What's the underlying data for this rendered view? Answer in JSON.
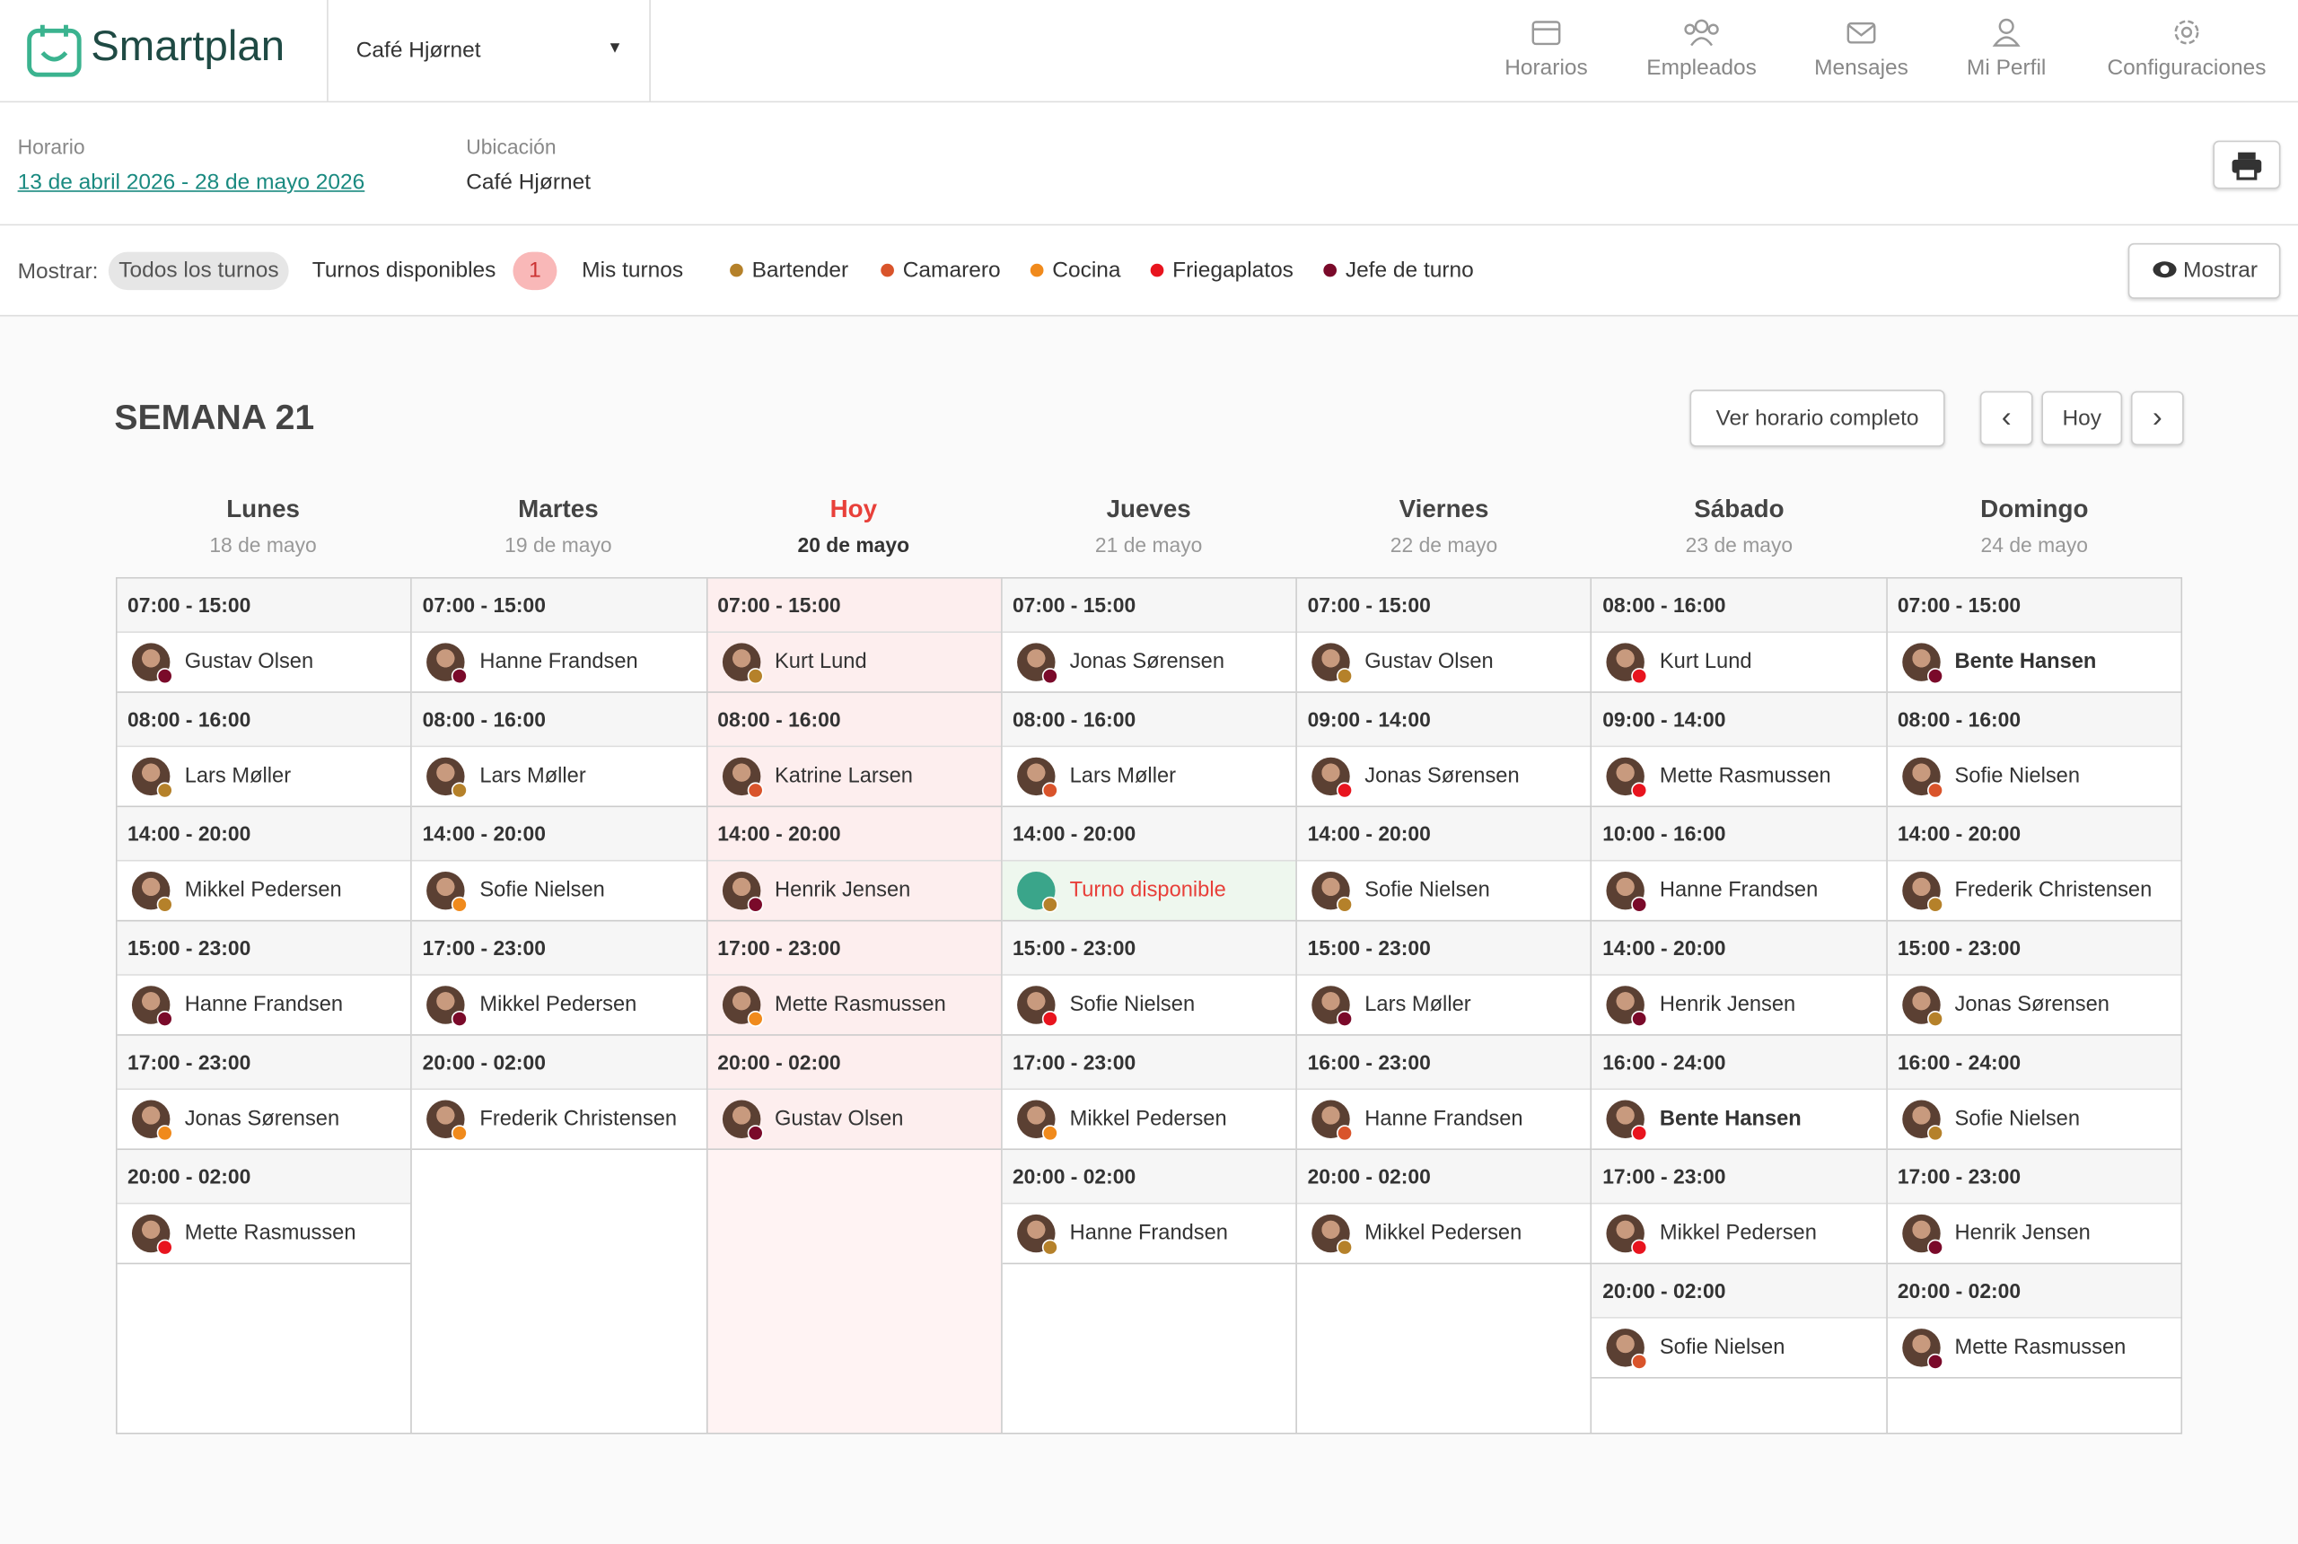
{
  "header": {
    "brand": "Smartplan",
    "location_select": "Café Hjørnet",
    "nav": [
      "Horarios",
      "Empleados",
      "Mensajes",
      "Mi Perfil",
      "Configuraciones"
    ]
  },
  "info": {
    "schedule_label": "Horario",
    "schedule_range": "13 de abril 2026 - 28 de mayo 2026",
    "location_label": "Ubicación",
    "location": "Café Hjørnet"
  },
  "filters": {
    "label": "Mostrar:",
    "options": [
      "Todos los turnos",
      "Turnos disponibles",
      "Mis turnos"
    ],
    "available_count": 1,
    "roles": [
      {
        "name": "Bartender",
        "color": "#b5812a"
      },
      {
        "name": "Camarero",
        "color": "#d9542b"
      },
      {
        "name": "Cocina",
        "color": "#f08a1c"
      },
      {
        "name": "Friegaplatos",
        "color": "#e8141e"
      },
      {
        "name": "Jefe de turno",
        "color": "#7a0a2a"
      }
    ],
    "show_button": "Mostrar"
  },
  "week": {
    "title": "SEMANA 21",
    "full_schedule": "Ver horario completo",
    "today_button": "Hoy",
    "days": [
      {
        "name": "Lunes",
        "date": "18 de mayo",
        "today": false,
        "shifts": [
          {
            "time": "07:00 - 15:00",
            "employee": "Gustav Olsen",
            "color": "#7a0a2a"
          },
          {
            "time": "08:00 - 16:00",
            "employee": "Lars Møller",
            "color": "#b5812a"
          },
          {
            "time": "14:00 - 20:00",
            "employee": "Mikkel Pedersen",
            "color": "#b5812a"
          },
          {
            "time": "15:00 - 23:00",
            "employee": "Hanne Frandsen",
            "color": "#7a0a2a"
          },
          {
            "time": "17:00 - 23:00",
            "employee": "Jonas Sørensen",
            "color": "#f08a1c"
          },
          {
            "time": "20:00 - 02:00",
            "employee": "Mette Rasmussen",
            "color": "#e8141e"
          }
        ]
      },
      {
        "name": "Martes",
        "date": "19 de mayo",
        "today": false,
        "shifts": [
          {
            "time": "07:00 - 15:00",
            "employee": "Hanne Frandsen",
            "color": "#7a0a2a"
          },
          {
            "time": "08:00 - 16:00",
            "employee": "Lars Møller",
            "color": "#b5812a"
          },
          {
            "time": "14:00 - 20:00",
            "employee": "Sofie Nielsen",
            "color": "#f08a1c"
          },
          {
            "time": "17:00 - 23:00",
            "employee": "Mikkel Pedersen",
            "color": "#7a0a2a"
          },
          {
            "time": "20:00 - 02:00",
            "employee": "Frederik Christensen",
            "color": "#f08a1c"
          }
        ]
      },
      {
        "name": "Hoy",
        "date": "20 de mayo",
        "today": true,
        "shifts": [
          {
            "time": "07:00 - 15:00",
            "employee": "Kurt Lund",
            "color": "#b5812a"
          },
          {
            "time": "08:00 - 16:00",
            "employee": "Katrine Larsen",
            "color": "#d9542b"
          },
          {
            "time": "14:00 - 20:00",
            "employee": "Henrik Jensen",
            "color": "#7a0a2a"
          },
          {
            "time": "17:00 - 23:00",
            "employee": "Mette Rasmussen",
            "color": "#f08a1c"
          },
          {
            "time": "20:00 - 02:00",
            "employee": "Gustav Olsen",
            "color": "#7a0a2a"
          }
        ]
      },
      {
        "name": "Jueves",
        "date": "21 de mayo",
        "today": false,
        "shifts": [
          {
            "time": "07:00 - 15:00",
            "employee": "Jonas Sørensen",
            "color": "#7a0a2a"
          },
          {
            "time": "08:00 - 16:00",
            "employee": "Lars Møller",
            "color": "#d9542b"
          },
          {
            "time": "14:00 - 20:00",
            "employee": "Turno disponible",
            "color": "#b5812a",
            "available": true
          },
          {
            "time": "15:00 - 23:00",
            "employee": "Sofie Nielsen",
            "color": "#e8141e"
          },
          {
            "time": "17:00 - 23:00",
            "employee": "Mikkel Pedersen",
            "color": "#f08a1c"
          },
          {
            "time": "20:00 - 02:00",
            "employee": "Hanne Frandsen",
            "color": "#b5812a"
          }
        ]
      },
      {
        "name": "Viernes",
        "date": "22 de mayo",
        "today": false,
        "shifts": [
          {
            "time": "07:00 - 15:00",
            "employee": "Gustav Olsen",
            "color": "#b5812a"
          },
          {
            "time": "09:00 - 14:00",
            "employee": "Jonas Sørensen",
            "color": "#e8141e"
          },
          {
            "time": "14:00 - 20:00",
            "employee": "Sofie Nielsen",
            "color": "#b5812a"
          },
          {
            "time": "15:00 - 23:00",
            "employee": "Lars Møller",
            "color": "#7a0a2a"
          },
          {
            "time": "16:00 - 23:00",
            "employee": "Hanne Frandsen",
            "color": "#d9542b"
          },
          {
            "time": "20:00 - 02:00",
            "employee": "Mikkel Pedersen",
            "color": "#b5812a"
          }
        ]
      },
      {
        "name": "Sábado",
        "date": "23 de mayo",
        "today": false,
        "shifts": [
          {
            "time": "08:00 - 16:00",
            "employee": "Kurt Lund",
            "color": "#e8141e"
          },
          {
            "time": "09:00 - 14:00",
            "employee": "Mette Rasmussen",
            "color": "#e8141e"
          },
          {
            "time": "10:00 - 16:00",
            "employee": "Hanne Frandsen",
            "color": "#7a0a2a"
          },
          {
            "time": "14:00 - 20:00",
            "employee": "Henrik Jensen",
            "color": "#7a0a2a"
          },
          {
            "time": "16:00 - 24:00",
            "employee": "Bente Hansen",
            "color": "#e8141e",
            "bold": true
          },
          {
            "time": "17:00 - 23:00",
            "employee": "Mikkel Pedersen",
            "color": "#e8141e"
          },
          {
            "time": "20:00 - 02:00",
            "employee": "Sofie Nielsen",
            "color": "#d9542b"
          }
        ]
      },
      {
        "name": "Domingo",
        "date": "24 de mayo",
        "today": false,
        "shifts": [
          {
            "time": "07:00 - 15:00",
            "employee": "Bente Hansen",
            "color": "#7a0a2a",
            "bold": true
          },
          {
            "time": "08:00 - 16:00",
            "employee": "Sofie Nielsen",
            "color": "#d9542b"
          },
          {
            "time": "14:00 - 20:00",
            "employee": "Frederik Christensen",
            "color": "#b5812a"
          },
          {
            "time": "15:00 - 23:00",
            "employee": "Jonas Sørensen",
            "color": "#b5812a"
          },
          {
            "time": "16:00 - 24:00",
            "employee": "Sofie Nielsen",
            "color": "#b5812a"
          },
          {
            "time": "17:00 - 23:00",
            "employee": "Henrik Jensen",
            "color": "#7a0a2a"
          },
          {
            "time": "20:00 - 02:00",
            "employee": "Mette Rasmussen",
            "color": "#7a0a2a"
          }
        ]
      }
    ]
  }
}
